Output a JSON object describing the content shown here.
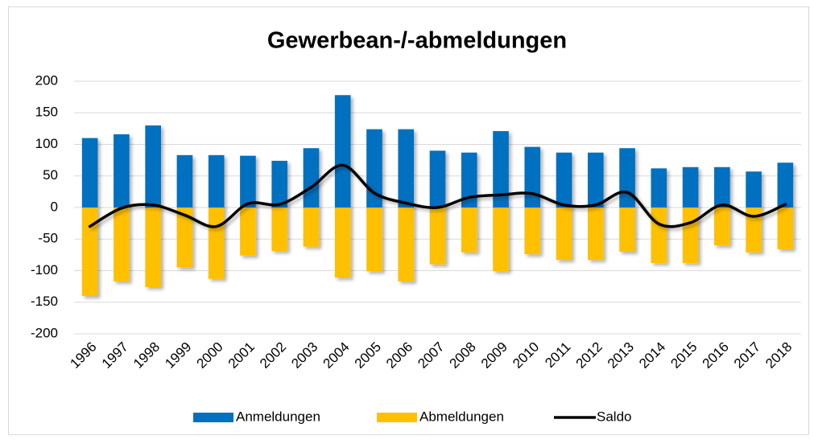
{
  "chart_data": {
    "type": "bar_line",
    "title": "Gewerbean-/-abmeldungen",
    "categories": [
      "1996",
      "1997",
      "1998",
      "1999",
      "2000",
      "2001",
      "2002",
      "2003",
      "2004",
      "2005",
      "2006",
      "2007",
      "2008",
      "2009",
      "2010",
      "2011",
      "2012",
      "2013",
      "2014",
      "2015",
      "2016",
      "2017",
      "2018"
    ],
    "series": [
      {
        "name": "Anmeldungen",
        "type": "bar",
        "color": "#0070c0",
        "values": [
          110,
          116,
          130,
          83,
          83,
          82,
          74,
          94,
          178,
          124,
          124,
          90,
          87,
          121,
          96,
          87,
          87,
          94,
          62,
          64,
          64,
          57,
          71
        ]
      },
      {
        "name": "Abmeldungen",
        "type": "bar",
        "color": "#ffc000",
        "values": [
          -140,
          -117,
          -126,
          -95,
          -113,
          -76,
          -69,
          -62,
          -111,
          -101,
          -117,
          -90,
          -71,
          -101,
          -74,
          -83,
          -83,
          -70,
          -88,
          -88,
          -60,
          -71,
          -66
        ]
      },
      {
        "name": "Saldo",
        "type": "line",
        "color": "#000000",
        "values": [
          -30,
          -1,
          4,
          -12,
          -30,
          6,
          5,
          32,
          67,
          23,
          7,
          0,
          16,
          20,
          22,
          4,
          4,
          24,
          -26,
          -24,
          4,
          -14,
          5
        ]
      }
    ],
    "ylim": [
      -200,
      200
    ],
    "yticks": [
      -200,
      -150,
      -100,
      -50,
      0,
      50,
      100,
      150,
      200
    ],
    "grid": true,
    "legend": "bottom"
  }
}
